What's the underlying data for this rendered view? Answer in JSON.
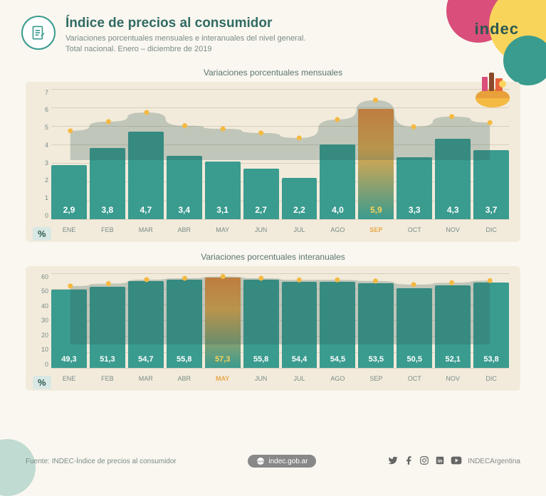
{
  "header": {
    "title": "Índice de precios al consumidor",
    "subtitle1": "Variaciones porcentuales mensuales e interanuales del nivel general.",
    "subtitle2": "Total nacional. Enero – diciembre de 2019",
    "logo": "indec"
  },
  "months": [
    "ENE",
    "FEB",
    "MAR",
    "ABR",
    "MAY",
    "JUN",
    "JUL",
    "AGO",
    "SEP",
    "OCT",
    "NOV",
    "DIC"
  ],
  "chart_monthly": {
    "title": "Variaciones porcentuales mensuales",
    "type": "bar+line",
    "ymax": 7,
    "ytick_step": 1,
    "yticks": [
      "7",
      "6",
      "5",
      "4",
      "3",
      "2",
      "1",
      "0"
    ],
    "values": [
      2.9,
      3.8,
      4.7,
      3.4,
      3.1,
      2.7,
      2.2,
      4.0,
      5.9,
      3.3,
      4.3,
      3.7
    ],
    "labels": [
      "2,9",
      "3,8",
      "4,7",
      "3,4",
      "3,1",
      "2,7",
      "2,2",
      "4,0",
      "5,9",
      "3,3",
      "4,3",
      "3,7"
    ],
    "highlight_index": 8,
    "bar_color": "#3a9b8f",
    "highlight_gradient": [
      "#f08a3a",
      "#3a9b8f"
    ],
    "dot_color": "#f4b942",
    "line_color": "#f4b942",
    "background_color": "#f2ebdb",
    "grid_color": "#d8d0bc",
    "value_fontsize": 12,
    "value_color": "#ffffff",
    "highlight_value_color": "#f9d45a"
  },
  "chart_annual": {
    "title": "Variaciones porcentuales interanuales",
    "type": "bar+line",
    "ymax": 60,
    "ytick_step": 10,
    "yticks": [
      "60",
      "50",
      "40",
      "30",
      "20",
      "10",
      "0"
    ],
    "values": [
      49.3,
      51.3,
      54.7,
      55.8,
      57.3,
      55.8,
      54.4,
      54.5,
      53.5,
      50.5,
      52.1,
      53.8
    ],
    "labels": [
      "49,3",
      "51,3",
      "54,7",
      "55,8",
      "57,3",
      "55,8",
      "54,4",
      "54,5",
      "53,5",
      "50,5",
      "52,1",
      "53,8"
    ],
    "highlight_index": 4,
    "bar_color": "#3a9b8f",
    "highlight_gradient": [
      "#f08a3a",
      "#3a9b8f"
    ],
    "dot_color": "#f4b942",
    "line_color": "#f4b942",
    "background_color": "#f2ebdb",
    "grid_color": "#d8d0bc",
    "value_fontsize": 11,
    "value_color": "#ffffff",
    "highlight_value_color": "#f9d45a"
  },
  "percent_symbol": "%",
  "footer": {
    "source": "Fuente: INDEC-Índice de precios al consumidor",
    "site": "indec.gob.ar",
    "social_tag": "INDECArgentina"
  },
  "colors": {
    "page_bg": "#faf7f0",
    "accent_pink": "#d94e7a",
    "accent_yellow": "#f9d45a",
    "accent_teal": "#3a9b8f",
    "text_dark": "#306b63"
  }
}
